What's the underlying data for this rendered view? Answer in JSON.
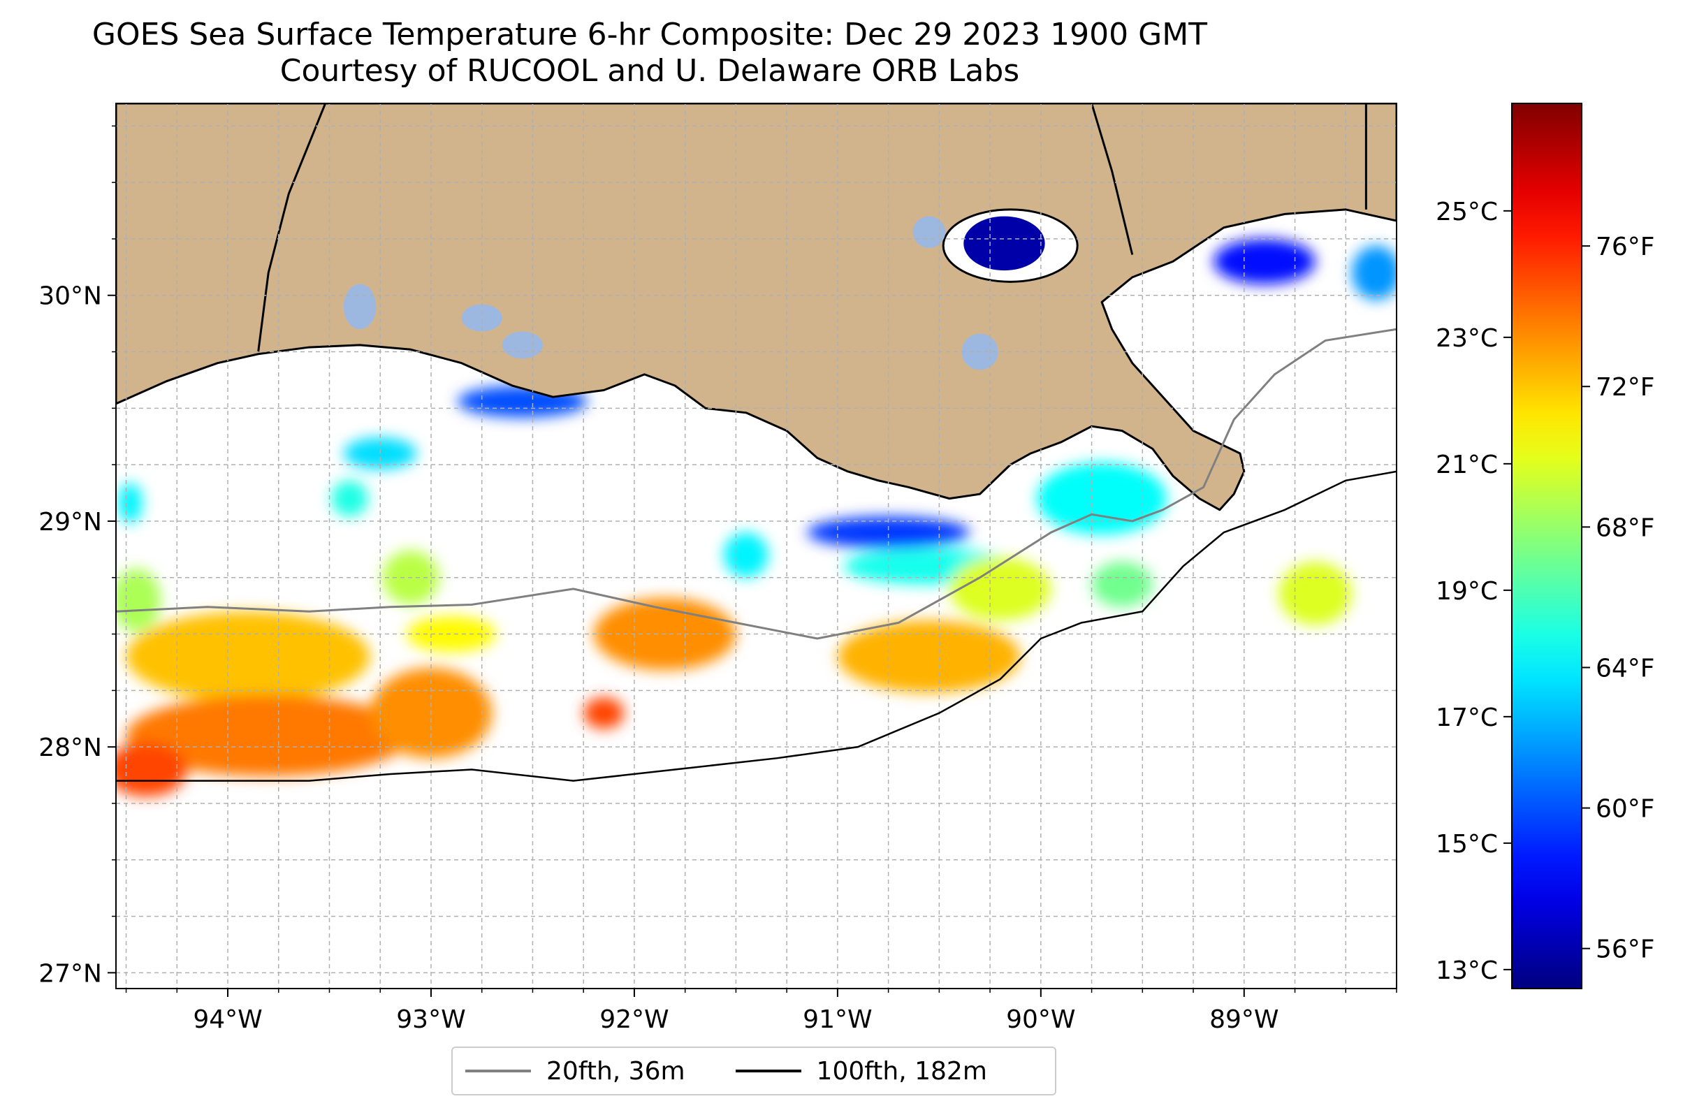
{
  "title": {
    "line1": "GOES Sea Surface Temperature 6-hr Composite: Dec 29 2023 1900 GMT",
    "line2": "Courtesy of RUCOOL and U. Delaware ORB Labs"
  },
  "map": {
    "lon_range": [
      -94.55,
      -88.25
    ],
    "lat_range": [
      26.93,
      30.85
    ],
    "lon_ticks": [
      {
        "value": -94,
        "label": "94°W"
      },
      {
        "value": -93,
        "label": "93°W"
      },
      {
        "value": -92,
        "label": "92°W"
      },
      {
        "value": -91,
        "label": "91°W"
      },
      {
        "value": -90,
        "label": "90°W"
      },
      {
        "value": -89,
        "label": "89°W"
      }
    ],
    "lat_ticks": [
      {
        "value": 27,
        "label": "27°N"
      },
      {
        "value": 28,
        "label": "28°N"
      },
      {
        "value": 29,
        "label": "29°N"
      },
      {
        "value": 30,
        "label": "30°N"
      }
    ],
    "gridlines": true,
    "land_color": "#d2b48c",
    "lake_color": "#9db8e0",
    "ocean_color": "#ffffff"
  },
  "colorbar": {
    "colormap": "jet",
    "range_c": [
      12.7,
      26.7
    ],
    "celsius_ticks": [
      {
        "value": 13,
        "label": "13°C"
      },
      {
        "value": 15,
        "label": "15°C"
      },
      {
        "value": 17,
        "label": "17°C"
      },
      {
        "value": 19,
        "label": "19°C"
      },
      {
        "value": 21,
        "label": "21°C"
      },
      {
        "value": 23,
        "label": "23°C"
      },
      {
        "value": 25,
        "label": "25°C"
      }
    ],
    "fahrenheit_ticks": [
      {
        "value": 56,
        "label": "56°F"
      },
      {
        "value": 60,
        "label": "60°F"
      },
      {
        "value": 64,
        "label": "64°F"
      },
      {
        "value": 68,
        "label": "68°F"
      },
      {
        "value": 72,
        "label": "72°F"
      },
      {
        "value": 76,
        "label": "76°F"
      }
    ]
  },
  "legend": {
    "items": [
      {
        "label": "20fth, 36m",
        "color": "#808080"
      },
      {
        "label": "100fth, 182m",
        "color": "#000000"
      }
    ]
  },
  "sst_patches": [
    {
      "lon": -93.25,
      "lat": 29.3,
      "rx": 0.18,
      "ry": 0.07,
      "temp_c": 17.5
    },
    {
      "lon": -92.55,
      "lat": 29.53,
      "rx": 0.32,
      "ry": 0.07,
      "temp_c": 15.5
    },
    {
      "lon": -93.4,
      "lat": 29.1,
      "rx": 0.09,
      "ry": 0.08,
      "temp_c": 18.3
    },
    {
      "lon": -94.48,
      "lat": 29.08,
      "rx": 0.06,
      "ry": 0.09,
      "temp_c": 17.8
    },
    {
      "lon": -91.45,
      "lat": 28.85,
      "rx": 0.11,
      "ry": 0.1,
      "temp_c": 17.8
    },
    {
      "lon": -90.75,
      "lat": 28.95,
      "rx": 0.4,
      "ry": 0.07,
      "temp_c": 15.2
    },
    {
      "lon": -90.55,
      "lat": 28.8,
      "rx": 0.42,
      "ry": 0.08,
      "temp_c": 18.2
    },
    {
      "lon": -89.7,
      "lat": 29.1,
      "rx": 0.32,
      "ry": 0.16,
      "temp_c": 18.0
    },
    {
      "lon": -89.6,
      "lat": 28.72,
      "rx": 0.15,
      "ry": 0.1,
      "temp_c": 19.5
    },
    {
      "lon": -90.2,
      "lat": 30.22,
      "rx": 0.18,
      "ry": 0.12,
      "temp_c": 13.3
    },
    {
      "lon": -88.9,
      "lat": 30.15,
      "rx": 0.25,
      "ry": 0.1,
      "temp_c": 14.6
    },
    {
      "lon": -88.35,
      "lat": 30.1,
      "rx": 0.12,
      "ry": 0.12,
      "temp_c": 16.5
    },
    {
      "lon": -93.1,
      "lat": 28.75,
      "rx": 0.14,
      "ry": 0.12,
      "temp_c": 20.5
    },
    {
      "lon": -92.9,
      "lat": 28.5,
      "rx": 0.22,
      "ry": 0.08,
      "temp_c": 21.5
    },
    {
      "lon": -94.45,
      "lat": 28.65,
      "rx": 0.12,
      "ry": 0.14,
      "temp_c": 20.3
    },
    {
      "lon": -93.9,
      "lat": 28.4,
      "rx": 0.6,
      "ry": 0.2,
      "temp_c": 22.3
    },
    {
      "lon": -93.8,
      "lat": 28.05,
      "rx": 0.7,
      "ry": 0.18,
      "temp_c": 23.3
    },
    {
      "lon": -93.0,
      "lat": 28.15,
      "rx": 0.3,
      "ry": 0.2,
      "temp_c": 23.0
    },
    {
      "lon": -94.4,
      "lat": 27.9,
      "rx": 0.2,
      "ry": 0.12,
      "temp_c": 24.0
    },
    {
      "lon": -91.85,
      "lat": 28.5,
      "rx": 0.35,
      "ry": 0.16,
      "temp_c": 23.0
    },
    {
      "lon": -92.15,
      "lat": 28.15,
      "rx": 0.1,
      "ry": 0.07,
      "temp_c": 24.0
    },
    {
      "lon": -90.55,
      "lat": 28.4,
      "rx": 0.45,
      "ry": 0.16,
      "temp_c": 22.5
    },
    {
      "lon": -90.2,
      "lat": 28.7,
      "rx": 0.25,
      "ry": 0.14,
      "temp_c": 21.0
    },
    {
      "lon": -88.65,
      "lat": 28.68,
      "rx": 0.18,
      "ry": 0.14,
      "temp_c": 21.0
    }
  ]
}
